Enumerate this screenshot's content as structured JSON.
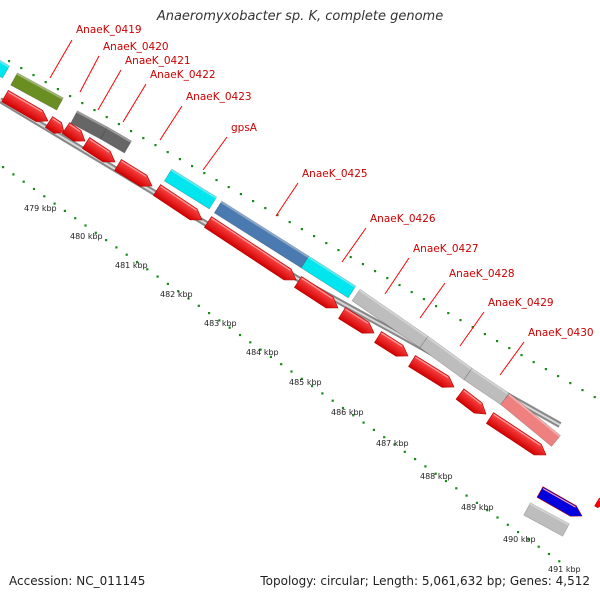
{
  "title": "Anaeromyxobacter sp. K, complete genome",
  "footer": {
    "accession": "Accession: NC_011145",
    "info": "Topology: circular; Length: 5,061,632 bp; Genes: 4,512"
  },
  "genes": [
    {
      "label": "AnaeK_0419",
      "color": "#6b8e23"
    },
    {
      "label": "AnaeK_0420",
      "color": "#666666"
    },
    {
      "label": "AnaeK_0421",
      "color": "#666666"
    },
    {
      "label": "AnaeK_0422",
      "color": "#666666"
    },
    {
      "label": "AnaeK_0423",
      "color": "#00e5ee"
    },
    {
      "label": "gpsA",
      "color": "#4a7ab0"
    },
    {
      "label": "AnaeK_0425",
      "color": "#4a7ab0"
    },
    {
      "label": "AnaeK_0426",
      "color": "#00e5ee"
    },
    {
      "label": "AnaeK_0427",
      "color": "#bdbdbd"
    },
    {
      "label": "AnaeK_0428",
      "color": "#bdbdbd"
    },
    {
      "label": "AnaeK_0429",
      "color": "#bdbdbd"
    },
    {
      "label": "AnaeK_0430",
      "color": "#ee8080"
    }
  ],
  "ruler": [
    "479 kbp",
    "480 kbp",
    "481 kbp",
    "482 kbp",
    "483 kbp",
    "484 kbp",
    "485 kbp",
    "486 kbp",
    "487 kbp",
    "488 kbp",
    "489 kbp",
    "490 kbp",
    "491 kbp"
  ],
  "colors": {
    "cds": "#ff0000",
    "label": "#cc0000",
    "ticks": "#1a8a1a",
    "backbone": "#999999",
    "cyan": "#00e5ee",
    "blue": "#0000dd"
  }
}
